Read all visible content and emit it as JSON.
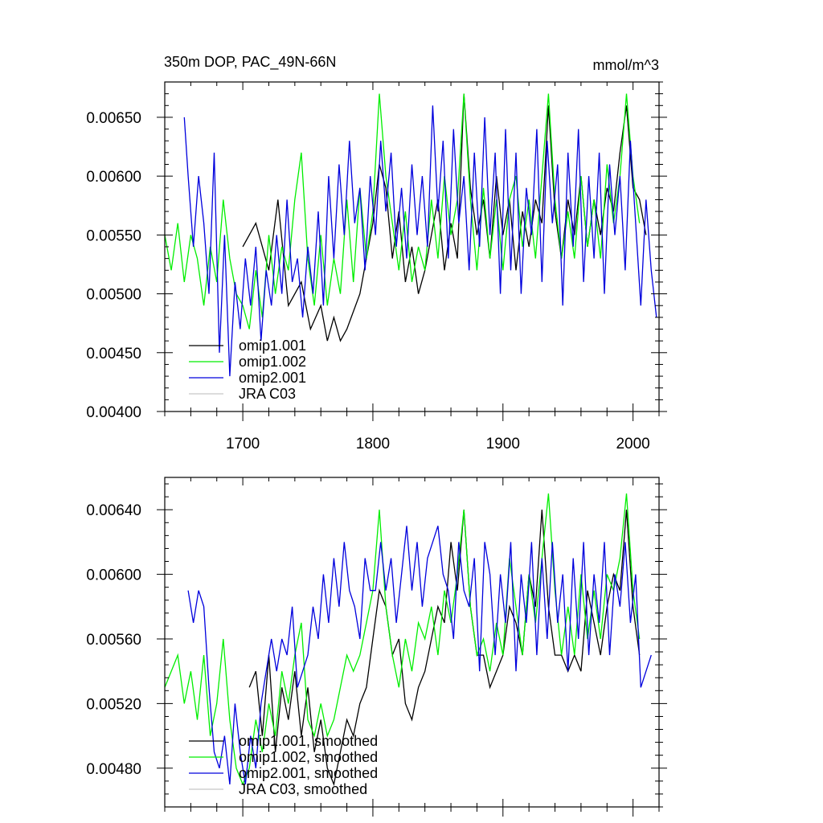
{
  "chart_data": [
    {
      "type": "line",
      "title": "350m DOP, PAC_49N-66N",
      "units": "mmol/m^3",
      "xlabel": "",
      "ylabel": "",
      "xlim": [
        1640,
        2020
      ],
      "ylim": [
        0.004,
        0.0068
      ],
      "xticks": [
        1700,
        1800,
        1900,
        2000
      ],
      "xtick_labels": [
        "1700",
        "1800",
        "1900",
        "2000"
      ],
      "yticks": [
        0.004,
        0.0045,
        0.005,
        0.0055,
        0.006,
        0.0065
      ],
      "ytick_labels": [
        "0.00400",
        "0.00450",
        "0.00500",
        "0.00550",
        "0.00600",
        "0.00650"
      ],
      "legend_position": "bottom-left",
      "legend": [
        "omip1.001",
        "omip1.002",
        "omip2.001",
        "JRA C03"
      ],
      "series": [
        {
          "name": "omip1.001",
          "color": "#000000",
          "x": [
            1700,
            1710,
            1720,
            1727,
            1735,
            1745,
            1752,
            1760,
            1765,
            1770,
            1775,
            1780,
            1790,
            1800,
            1805,
            1810,
            1815,
            1820,
            1825,
            1830,
            1835,
            1840,
            1845,
            1850,
            1855,
            1860,
            1865,
            1870,
            1875,
            1880,
            1885,
            1890,
            1895,
            1900,
            1905,
            1910,
            1915,
            1920,
            1925,
            1930,
            1935,
            1940,
            1945,
            1950,
            1955,
            1960,
            1965,
            1970,
            1975,
            1980,
            1985,
            1990,
            1995,
            2000,
            2005,
            2010
          ],
          "values": [
            0.0054,
            0.0056,
            0.0052,
            0.0058,
            0.0049,
            0.0051,
            0.0047,
            0.0049,
            0.0046,
            0.0048,
            0.0046,
            0.0047,
            0.005,
            0.0056,
            0.0061,
            0.0059,
            0.0053,
            0.0057,
            0.0051,
            0.0054,
            0.005,
            0.0052,
            0.0055,
            0.0058,
            0.0052,
            0.0056,
            0.0053,
            0.0067,
            0.0059,
            0.0055,
            0.0058,
            0.0053,
            0.006,
            0.0055,
            0.0058,
            0.0052,
            0.0057,
            0.0054,
            0.0058,
            0.0056,
            0.0066,
            0.0057,
            0.0053,
            0.0058,
            0.0055,
            0.006,
            0.0054,
            0.0058,
            0.0055,
            0.0059,
            0.0057,
            0.0062,
            0.0066,
            0.0059,
            0.0058,
            0.0055
          ]
        },
        {
          "name": "omip1.002",
          "color": "#00ee00",
          "x": [
            1640,
            1645,
            1650,
            1655,
            1660,
            1665,
            1670,
            1675,
            1680,
            1685,
            1690,
            1695,
            1700,
            1705,
            1710,
            1715,
            1720,
            1725,
            1730,
            1735,
            1740,
            1745,
            1750,
            1755,
            1760,
            1765,
            1770,
            1775,
            1780,
            1785,
            1790,
            1795,
            1800,
            1805,
            1810,
            1815,
            1820,
            1825,
            1830,
            1835,
            1840,
            1845,
            1850,
            1855,
            1860,
            1865,
            1870,
            1875,
            1880,
            1885,
            1890,
            1895,
            1900,
            1905,
            1910,
            1915,
            1920,
            1925,
            1930,
            1935,
            1940,
            1945,
            1950,
            1955,
            1960,
            1965,
            1970,
            1975,
            1980,
            1985,
            1990,
            1995,
            2000,
            2005
          ],
          "values": [
            0.0055,
            0.0052,
            0.0056,
            0.0051,
            0.0055,
            0.0053,
            0.0049,
            0.0054,
            0.0051,
            0.0058,
            0.0053,
            0.005,
            0.0049,
            0.0047,
            0.0052,
            0.0048,
            0.0055,
            0.005,
            0.0054,
            0.0052,
            0.0058,
            0.0062,
            0.0053,
            0.0049,
            0.0055,
            0.0049,
            0.0053,
            0.005,
            0.0058,
            0.0051,
            0.0059,
            0.0053,
            0.0057,
            0.0067,
            0.006,
            0.0056,
            0.0052,
            0.0057,
            0.0051,
            0.0054,
            0.0052,
            0.0058,
            0.0053,
            0.006,
            0.0055,
            0.0058,
            0.0067,
            0.0058,
            0.0052,
            0.0059,
            0.0053,
            0.0058,
            0.0052,
            0.0058,
            0.006,
            0.0054,
            0.0058,
            0.0053,
            0.006,
            0.0067,
            0.0058,
            0.0053,
            0.0057,
            0.0053,
            0.006,
            0.0054,
            0.0058,
            0.0053,
            0.0061,
            0.0056,
            0.006,
            0.0067,
            0.006,
            0.0056
          ]
        },
        {
          "name": "omip2.001",
          "color": "#0000dd",
          "x": [
            1655,
            1658,
            1662,
            1666,
            1670,
            1674,
            1678,
            1682,
            1686,
            1690,
            1694,
            1698,
            1702,
            1706,
            1710,
            1714,
            1718,
            1722,
            1726,
            1730,
            1734,
            1738,
            1742,
            1746,
            1750,
            1754,
            1758,
            1762,
            1766,
            1770,
            1774,
            1778,
            1782,
            1786,
            1790,
            1794,
            1798,
            1802,
            1806,
            1810,
            1814,
            1818,
            1822,
            1826,
            1830,
            1834,
            1838,
            1842,
            1846,
            1850,
            1854,
            1858,
            1862,
            1866,
            1870,
            1874,
            1878,
            1882,
            1886,
            1890,
            1894,
            1898,
            1902,
            1906,
            1910,
            1914,
            1918,
            1922,
            1926,
            1930,
            1934,
            1938,
            1942,
            1946,
            1950,
            1954,
            1958,
            1962,
            1966,
            1970,
            1974,
            1978,
            1982,
            1986,
            1990,
            1994,
            1998,
            2002,
            2006,
            2010,
            2014,
            2018
          ],
          "values": [
            0.0065,
            0.006,
            0.0054,
            0.006,
            0.0056,
            0.005,
            0.0062,
            0.0045,
            0.0055,
            0.0043,
            0.0051,
            0.0047,
            0.0053,
            0.0049,
            0.0054,
            0.0046,
            0.0052,
            0.0049,
            0.0055,
            0.005,
            0.0058,
            0.0051,
            0.0053,
            0.0048,
            0.0054,
            0.005,
            0.0057,
            0.0049,
            0.006,
            0.0053,
            0.0061,
            0.0055,
            0.0063,
            0.0056,
            0.0059,
            0.0052,
            0.006,
            0.0055,
            0.0063,
            0.0057,
            0.0062,
            0.0054,
            0.0059,
            0.0053,
            0.0061,
            0.0055,
            0.006,
            0.0054,
            0.0066,
            0.0057,
            0.0063,
            0.0053,
            0.0064,
            0.0056,
            0.006,
            0.0052,
            0.0062,
            0.0054,
            0.0065,
            0.0055,
            0.0062,
            0.005,
            0.0064,
            0.0052,
            0.0062,
            0.005,
            0.0059,
            0.0055,
            0.0064,
            0.0051,
            0.0063,
            0.0056,
            0.0061,
            0.0049,
            0.0062,
            0.0054,
            0.0064,
            0.0051,
            0.006,
            0.0053,
            0.0062,
            0.005,
            0.0061,
            0.0055,
            0.006,
            0.0052,
            0.0063,
            0.0056,
            0.0049,
            0.0058,
            0.0052,
            0.0048
          ]
        },
        {
          "name": "JRA C03",
          "color": "#c8c8c8",
          "x": [],
          "values": []
        }
      ]
    },
    {
      "type": "line",
      "title": "",
      "xlabel": "",
      "ylabel": "",
      "xlim": [
        1640,
        2020
      ],
      "ylim": [
        0.00456,
        0.0066
      ],
      "xticks": [
        1700,
        1800,
        1900,
        2000
      ],
      "xtick_labels": [],
      "yticks": [
        0.0048,
        0.0052,
        0.0056,
        0.006,
        0.0064
      ],
      "ytick_labels": [
        "0.00480",
        "0.00520",
        "0.00560",
        "0.00600",
        "0.00640"
      ],
      "legend_position": "bottom-left",
      "legend": [
        "omip1.001, smoothed",
        "omip1.002, smoothed",
        "omip2.001, smoothed",
        "JRA C03, smoothed"
      ],
      "series": [
        {
          "name": "omip1.001, smoothed",
          "color": "#000000",
          "x": [
            1705,
            1710,
            1715,
            1720,
            1725,
            1730,
            1735,
            1740,
            1745,
            1750,
            1755,
            1760,
            1765,
            1770,
            1775,
            1780,
            1785,
            1790,
            1795,
            1800,
            1805,
            1810,
            1815,
            1820,
            1825,
            1830,
            1835,
            1840,
            1845,
            1850,
            1855,
            1860,
            1865,
            1870,
            1875,
            1880,
            1885,
            1890,
            1895,
            1900,
            1905,
            1910,
            1915,
            1920,
            1925,
            1930,
            1935,
            1940,
            1945,
            1950,
            1955,
            1960,
            1965,
            1970,
            1975,
            1980,
            1985,
            1990,
            1995,
            2000,
            2005
          ],
          "values": [
            0.0053,
            0.0054,
            0.005,
            0.0055,
            0.0049,
            0.0053,
            0.0051,
            0.0054,
            0.005,
            0.0053,
            0.0049,
            0.0051,
            0.0048,
            0.0047,
            0.0049,
            0.0051,
            0.005,
            0.0052,
            0.0053,
            0.0056,
            0.0059,
            0.0058,
            0.0055,
            0.0056,
            0.0052,
            0.0051,
            0.0053,
            0.0054,
            0.0056,
            0.0058,
            0.0057,
            0.0062,
            0.0059,
            0.0064,
            0.0058,
            0.0055,
            0.0055,
            0.0053,
            0.0054,
            0.0055,
            0.0058,
            0.0057,
            0.0055,
            0.006,
            0.0058,
            0.0064,
            0.0058,
            0.0055,
            0.0055,
            0.0054,
            0.0055,
            0.0054,
            0.0059,
            0.0057,
            0.0055,
            0.0058,
            0.006,
            0.0059,
            0.0064,
            0.0058,
            0.0055
          ]
        },
        {
          "name": "omip1.002, smoothed",
          "color": "#00ee00",
          "x": [
            1640,
            1645,
            1650,
            1655,
            1660,
            1665,
            1670,
            1675,
            1680,
            1685,
            1690,
            1695,
            1700,
            1705,
            1710,
            1715,
            1720,
            1725,
            1730,
            1735,
            1740,
            1745,
            1750,
            1755,
            1760,
            1765,
            1770,
            1775,
            1780,
            1785,
            1790,
            1795,
            1800,
            1805,
            1810,
            1815,
            1820,
            1825,
            1830,
            1835,
            1840,
            1845,
            1850,
            1855,
            1860,
            1865,
            1870,
            1875,
            1880,
            1885,
            1890,
            1895,
            1900,
            1905,
            1910,
            1915,
            1920,
            1925,
            1930,
            1935,
            1940,
            1945,
            1950,
            1955,
            1960,
            1965,
            1970,
            1975,
            1980,
            1985,
            1990,
            1995,
            2000,
            2005
          ],
          "values": [
            0.0053,
            0.0054,
            0.0055,
            0.0052,
            0.0054,
            0.0051,
            0.0055,
            0.005,
            0.0052,
            0.0056,
            0.0051,
            0.0048,
            0.0047,
            0.0048,
            0.0051,
            0.0049,
            0.0052,
            0.005,
            0.0054,
            0.0052,
            0.0055,
            0.0057,
            0.0051,
            0.005,
            0.0052,
            0.005,
            0.0051,
            0.0053,
            0.0055,
            0.0054,
            0.0055,
            0.0057,
            0.0059,
            0.0064,
            0.0058,
            0.0055,
            0.0053,
            0.0056,
            0.0054,
            0.0057,
            0.0056,
            0.0058,
            0.0055,
            0.0059,
            0.0057,
            0.006,
            0.0064,
            0.0058,
            0.0055,
            0.0056,
            0.0054,
            0.0057,
            0.0055,
            0.0061,
            0.0058,
            0.0055,
            0.006,
            0.0057,
            0.0061,
            0.0065,
            0.0059,
            0.0055,
            0.0058,
            0.0055,
            0.006,
            0.0056,
            0.0059,
            0.0056,
            0.006,
            0.0059,
            0.0061,
            0.0065,
            0.0059,
            0.0056
          ]
        },
        {
          "name": "omip2.001, smoothed",
          "color": "#0000dd",
          "x": [
            1658,
            1662,
            1666,
            1670,
            1674,
            1678,
            1682,
            1686,
            1690,
            1694,
            1698,
            1702,
            1706,
            1710,
            1714,
            1718,
            1722,
            1726,
            1730,
            1734,
            1738,
            1742,
            1746,
            1750,
            1754,
            1758,
            1762,
            1766,
            1770,
            1774,
            1778,
            1782,
            1786,
            1790,
            1794,
            1798,
            1802,
            1806,
            1810,
            1814,
            1818,
            1822,
            1826,
            1830,
            1834,
            1838,
            1842,
            1846,
            1850,
            1854,
            1858,
            1862,
            1866,
            1870,
            1874,
            1878,
            1882,
            1886,
            1890,
            1894,
            1898,
            1902,
            1906,
            1910,
            1914,
            1918,
            1922,
            1926,
            1930,
            1934,
            1938,
            1942,
            1946,
            1950,
            1954,
            1958,
            1962,
            1966,
            1970,
            1974,
            1978,
            1982,
            1986,
            1990,
            1994,
            1998,
            2002,
            2006,
            2010,
            2014
          ],
          "values": [
            0.0059,
            0.0057,
            0.0059,
            0.0058,
            0.0053,
            0.0049,
            0.0048,
            0.005,
            0.0047,
            0.0052,
            0.0049,
            0.0047,
            0.005,
            0.0048,
            0.0052,
            0.0054,
            0.0056,
            0.0054,
            0.0056,
            0.0055,
            0.0058,
            0.0053,
            0.0054,
            0.0055,
            0.0058,
            0.0056,
            0.006,
            0.0057,
            0.0061,
            0.0058,
            0.0062,
            0.0059,
            0.0058,
            0.0056,
            0.0061,
            0.0059,
            0.0059,
            0.0062,
            0.0059,
            0.0061,
            0.0057,
            0.006,
            0.0063,
            0.0059,
            0.0062,
            0.0058,
            0.0061,
            0.0062,
            0.0063,
            0.006,
            0.0059,
            0.0056,
            0.0062,
            0.0059,
            0.0058,
            0.0061,
            0.0054,
            0.0062,
            0.006,
            0.0055,
            0.006,
            0.0057,
            0.0062,
            0.0054,
            0.006,
            0.0057,
            0.0062,
            0.0055,
            0.0061,
            0.0056,
            0.0062,
            0.0057,
            0.006,
            0.0054,
            0.0061,
            0.0056,
            0.0062,
            0.0055,
            0.006,
            0.0057,
            0.0062,
            0.0055,
            0.006,
            0.0058,
            0.0062,
            0.0057,
            0.006,
            0.0053,
            0.0054,
            0.0055
          ]
        },
        {
          "name": "JRA C03, smoothed",
          "color": "#c8c8c8",
          "x": [],
          "values": []
        }
      ]
    }
  ]
}
